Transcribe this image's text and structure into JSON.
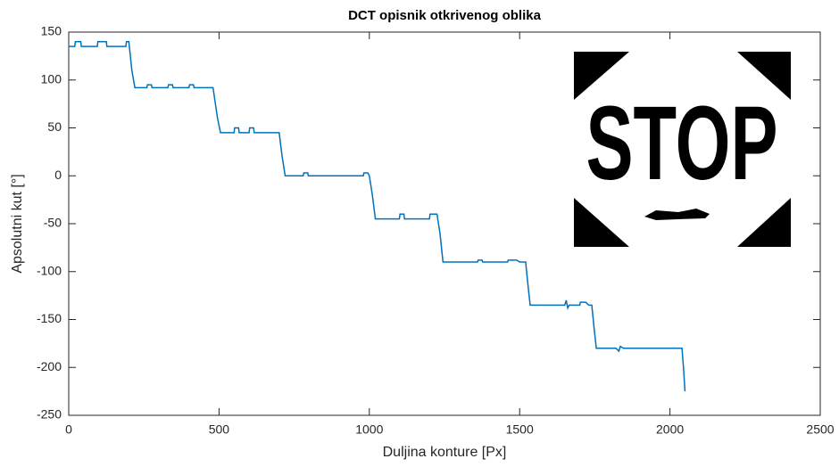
{
  "chart_data": {
    "type": "line",
    "title": "DCT opisnik otkrivenog oblika",
    "x_label": "Duljina konture [Px]",
    "y_label": "Apsolutni kut [°]",
    "xlim": [
      0,
      2500
    ],
    "xticks": [
      0,
      500,
      1000,
      1500,
      2000,
      2500
    ],
    "ylim": [
      -250,
      150
    ],
    "yticks": [
      -250,
      -200,
      -150,
      -100,
      -50,
      0,
      50,
      100,
      150
    ],
    "grid": false,
    "series": [
      {
        "color": "#0072bd",
        "x": [
          0,
          20,
          22,
          40,
          42,
          95,
          97,
          125,
          127,
          190,
          192,
          200,
          210,
          220,
          260,
          262,
          275,
          277,
          330,
          332,
          345,
          347,
          400,
          402,
          415,
          417,
          475,
          480,
          495,
          505,
          550,
          552,
          565,
          567,
          600,
          602,
          615,
          617,
          700,
          710,
          720,
          780,
          782,
          795,
          797,
          980,
          982,
          995,
          1000,
          1010,
          1020,
          1100,
          1102,
          1115,
          1117,
          1200,
          1202,
          1225,
          1235,
          1245,
          1360,
          1362,
          1375,
          1377,
          1460,
          1462,
          1490,
          1500,
          1520,
          1528,
          1535,
          1650,
          1655,
          1660,
          1665,
          1700,
          1702,
          1720,
          1730,
          1740,
          1748,
          1755,
          1820,
          1830,
          1835,
          1845,
          2040,
          2045,
          2050
        ],
        "values": [
          135,
          135,
          140,
          140,
          135,
          135,
          140,
          140,
          135,
          135,
          140,
          140,
          110,
          92,
          92,
          95,
          95,
          92,
          92,
          95,
          95,
          92,
          92,
          95,
          95,
          92,
          92,
          92,
          60,
          45,
          45,
          50,
          50,
          45,
          45,
          50,
          50,
          45,
          45,
          20,
          0,
          0,
          3,
          3,
          0,
          0,
          3,
          3,
          0,
          -20,
          -45,
          -45,
          -40,
          -40,
          -45,
          -45,
          -40,
          -40,
          -60,
          -90,
          -90,
          -88,
          -88,
          -90,
          -90,
          -88,
          -88,
          -90,
          -90,
          -115,
          -135,
          -135,
          -130,
          -138,
          -135,
          -135,
          -132,
          -132,
          -135,
          -135,
          -160,
          -180,
          -180,
          -183,
          -178,
          -180,
          -180,
          -200,
          -225
        ]
      }
    ]
  },
  "inset": {
    "text": "STOP"
  }
}
